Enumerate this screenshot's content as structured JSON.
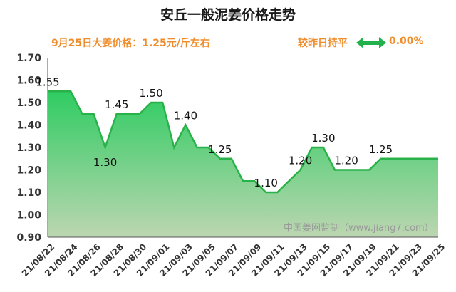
{
  "header": {
    "title": "安丘一般泥姜价格走势",
    "price_line": "9月25日大姜价格：1.25元/斤左右",
    "compare_label": "较昨日持平",
    "compare_pct": "0.00%",
    "compare_icon": "double-arrow-icon"
  },
  "colors": {
    "accent": "#ef8d2c",
    "line": "#2ab24a",
    "fill_top": "#2fcc62",
    "fill_bottom": "#bcd6b1"
  },
  "watermark": "中国姜网监制（www.jiang7.com）",
  "chart_data": {
    "type": "area",
    "title": "安丘一般泥姜价格走势",
    "ylim": [
      0.9,
      1.7
    ],
    "y_ticks": [
      "0.90",
      "1.00",
      "1.10",
      "1.20",
      "1.30",
      "1.40",
      "1.50",
      "1.60",
      "1.70"
    ],
    "grid": false,
    "x": [
      "21/08/22",
      "21/08/23",
      "21/08/24",
      "21/08/25",
      "21/08/26",
      "21/08/27",
      "21/08/28",
      "21/08/29",
      "21/08/30",
      "21/08/31",
      "21/09/01",
      "21/09/02",
      "21/09/03",
      "21/09/04",
      "21/09/05",
      "21/09/06",
      "21/09/07",
      "21/09/08",
      "21/09/09",
      "21/09/10",
      "21/09/11",
      "21/09/12",
      "21/09/13",
      "21/09/14",
      "21/09/15",
      "21/09/16",
      "21/09/17",
      "21/09/18",
      "21/09/19",
      "21/09/20",
      "21/09/21",
      "21/09/22",
      "21/09/23",
      "21/09/24",
      "21/09/25"
    ],
    "x_tick_labels": [
      "21/08/22",
      "21/08/24",
      "21/08/26",
      "21/08/28",
      "21/08/30",
      "21/09/01",
      "21/09/03",
      "21/09/05",
      "21/09/07",
      "21/09/09",
      "21/09/11",
      "21/09/13",
      "21/09/15",
      "21/09/17",
      "21/09/19",
      "21/09/21",
      "21/09/23",
      "21/09/25"
    ],
    "values": [
      1.55,
      1.55,
      1.55,
      1.45,
      1.45,
      1.3,
      1.45,
      1.45,
      1.45,
      1.5,
      1.5,
      1.3,
      1.4,
      1.3,
      1.3,
      1.25,
      1.25,
      1.15,
      1.15,
      1.1,
      1.1,
      1.15,
      1.2,
      1.3,
      1.3,
      1.2,
      1.2,
      1.2,
      1.2,
      1.25,
      1.25,
      1.25,
      1.25,
      1.25,
      1.25
    ],
    "data_labels": [
      {
        "index": 0,
        "text": "1.55",
        "position": "above"
      },
      {
        "index": 5,
        "text": "1.30",
        "position": "below"
      },
      {
        "index": 6,
        "text": "1.45",
        "position": "above"
      },
      {
        "index": 9,
        "text": "1.50",
        "position": "above"
      },
      {
        "index": 12,
        "text": "1.40",
        "position": "above"
      },
      {
        "index": 15,
        "text": "1.25",
        "position": "above"
      },
      {
        "index": 19,
        "text": "1.10",
        "position": "above"
      },
      {
        "index": 22,
        "text": "1.20",
        "position": "above"
      },
      {
        "index": 24,
        "text": "1.30",
        "position": "above"
      },
      {
        "index": 26,
        "text": "1.20",
        "position": "above"
      },
      {
        "index": 29,
        "text": "1.25",
        "position": "above"
      }
    ]
  }
}
